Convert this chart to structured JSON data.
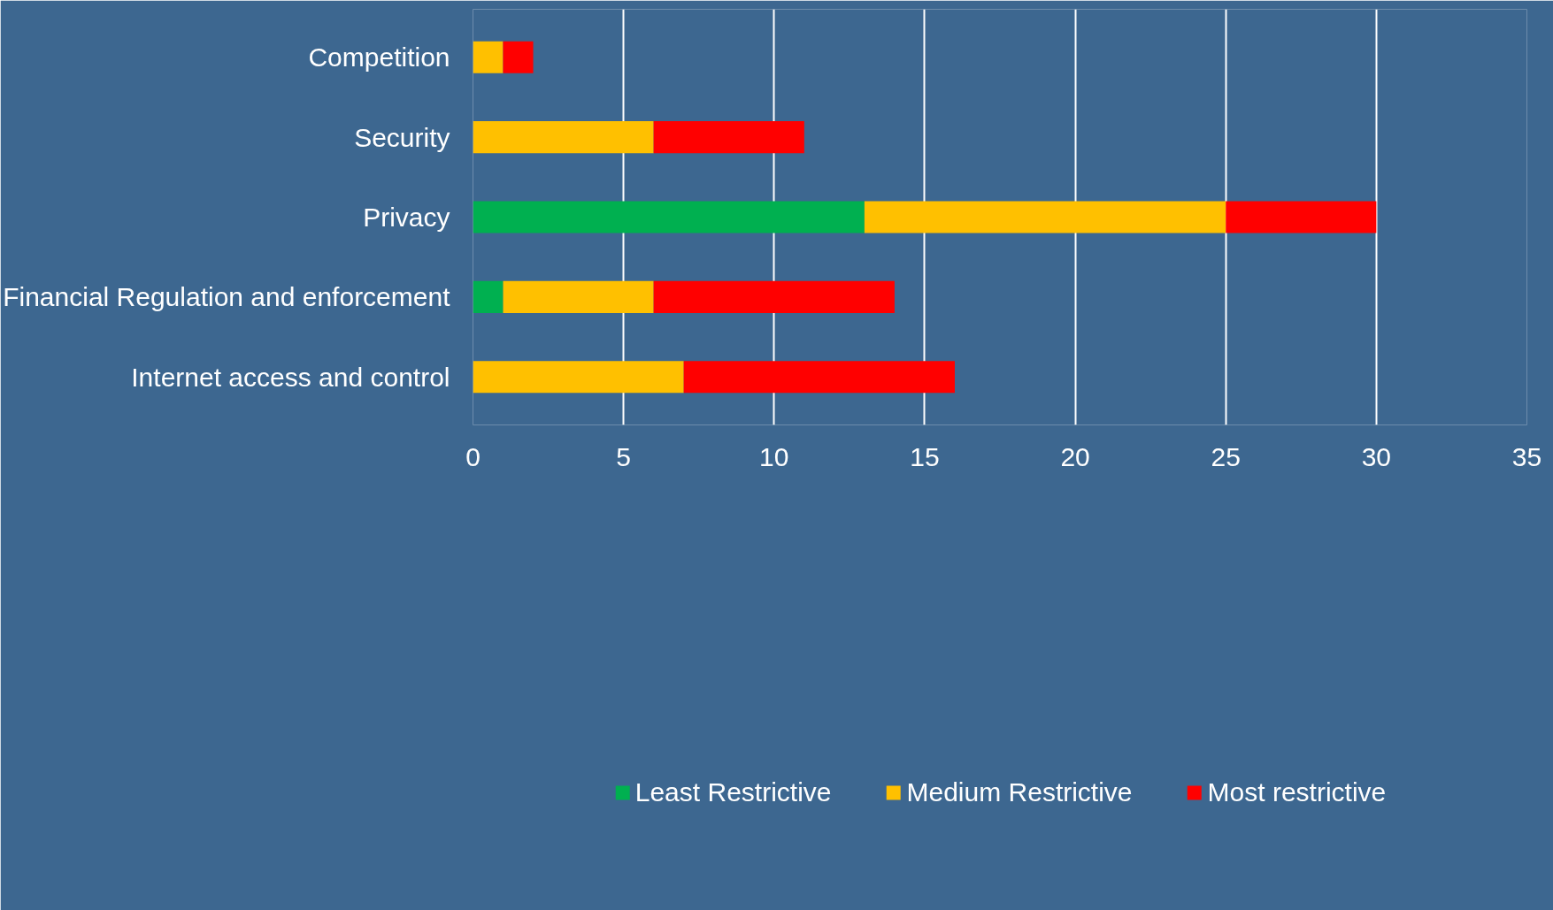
{
  "chart_data": {
    "type": "bar",
    "orientation": "horizontal",
    "stacked": true,
    "categories": [
      "Competition",
      "Security",
      "Privacy",
      "Financial Regulation and enforcement",
      "Internet access and control"
    ],
    "series": [
      {
        "name": "Least Restrictive",
        "color": "#00b050",
        "values": [
          0,
          0,
          13,
          1,
          0
        ]
      },
      {
        "name": "Medium Restrictive",
        "color": "#ffc000",
        "values": [
          1,
          6,
          12,
          5,
          7
        ]
      },
      {
        "name": "Most restrictive",
        "color": "#ff0000",
        "values": [
          1,
          5,
          5,
          8,
          9
        ]
      }
    ],
    "xlim": [
      0,
      35
    ],
    "xticks": [
      0,
      5,
      10,
      15,
      20,
      25,
      30,
      35
    ],
    "grid": "x",
    "legend": "bottom"
  }
}
